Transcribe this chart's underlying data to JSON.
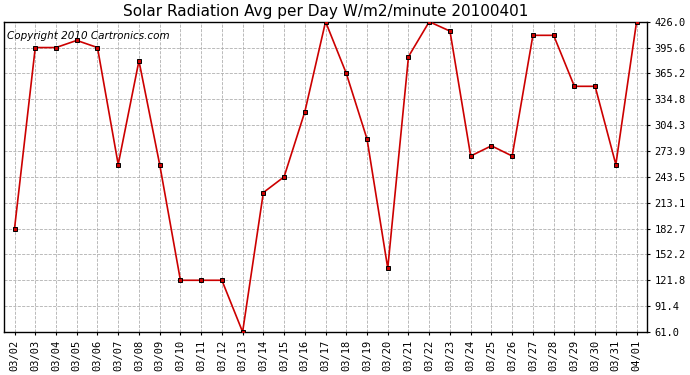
{
  "title": "Solar Radiation Avg per Day W/m2/minute 20100401",
  "copyright": "Copyright 2010 Cartronics.com",
  "dates": [
    "03/02",
    "03/03",
    "03/04",
    "03/05",
    "03/06",
    "03/07",
    "03/08",
    "03/09",
    "03/10",
    "03/11",
    "03/12",
    "03/13",
    "03/14",
    "03/15",
    "03/16",
    "03/17",
    "03/18",
    "03/19",
    "03/20",
    "03/21",
    "03/22",
    "03/23",
    "03/24",
    "03/25",
    "03/26",
    "03/27",
    "03/28",
    "03/29",
    "03/30",
    "03/31",
    "04/01"
  ],
  "values": [
    182.7,
    395.6,
    395.6,
    404.0,
    395.6,
    258.0,
    380.0,
    258.0,
    121.8,
    121.8,
    121.8,
    61.0,
    225.0,
    243.5,
    320.0,
    426.0,
    365.2,
    288.0,
    136.0,
    385.0,
    426.0,
    415.0,
    268.0,
    280.0,
    268.0,
    410.0,
    410.0,
    350.0,
    350.0,
    258.0,
    426.0
  ],
  "line_color": "#cc0000",
  "marker_color": "#000000",
  "background_color": "#ffffff",
  "grid_color": "#b0b0b0",
  "ylim": [
    61.0,
    426.0
  ],
  "yticks": [
    61.0,
    91.4,
    121.8,
    152.2,
    182.7,
    213.1,
    243.5,
    273.9,
    304.3,
    334.8,
    365.2,
    395.6,
    426.0
  ],
  "title_fontsize": 11,
  "copyright_fontsize": 7.5,
  "tick_fontsize": 7.5
}
